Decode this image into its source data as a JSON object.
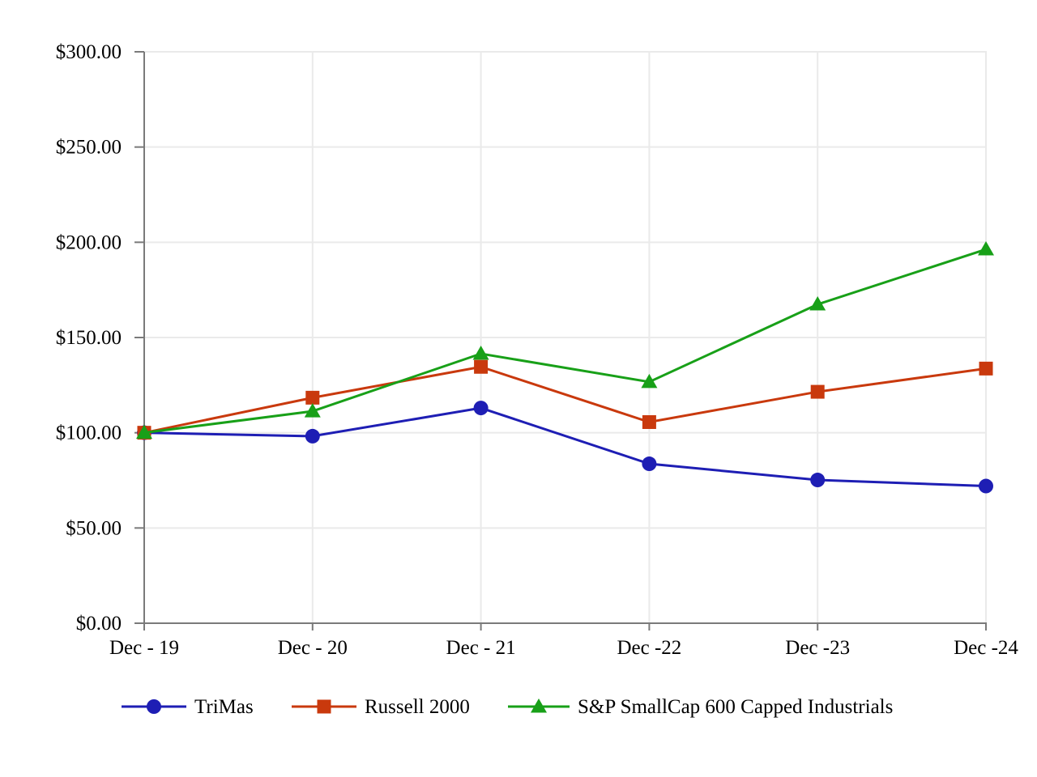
{
  "page": {
    "background_color": "#ffffff",
    "text_color": "#000000"
  },
  "chart_data": {
    "type": "line",
    "categories": [
      "Dec - 19",
      "Dec - 20",
      "Dec - 21",
      "Dec -22",
      "Dec -23",
      "Dec -24"
    ],
    "ylim": [
      0,
      300
    ],
    "y_tick_interval": 50,
    "y_tick_values": [
      0,
      50,
      100,
      150,
      200,
      250,
      300
    ],
    "y_tick_labels": [
      "$0.00",
      "$50.00",
      "$100.00",
      "$150.00",
      "$200.00",
      "$250.00",
      "$300.00"
    ],
    "grid": true,
    "legend_position": "bottom",
    "axis_color": "#7a7a7a",
    "grid_color": "#eaeaea",
    "series": [
      {
        "name": "TriMas",
        "marker": "circle",
        "color": "#1e1eb4",
        "values": [
          100.0,
          98.2,
          113.0,
          83.7,
          75.2,
          72.0
        ]
      },
      {
        "name": "Russell 2000",
        "marker": "square",
        "color": "#c9390d",
        "values": [
          100.0,
          118.4,
          134.6,
          105.6,
          121.5,
          133.7
        ]
      },
      {
        "name": "S&P SmallCap 600 Capped Industrials",
        "marker": "triangle",
        "color": "#18a018",
        "values": [
          100.0,
          111.3,
          141.5,
          126.7,
          167.4,
          196.3
        ]
      }
    ]
  }
}
